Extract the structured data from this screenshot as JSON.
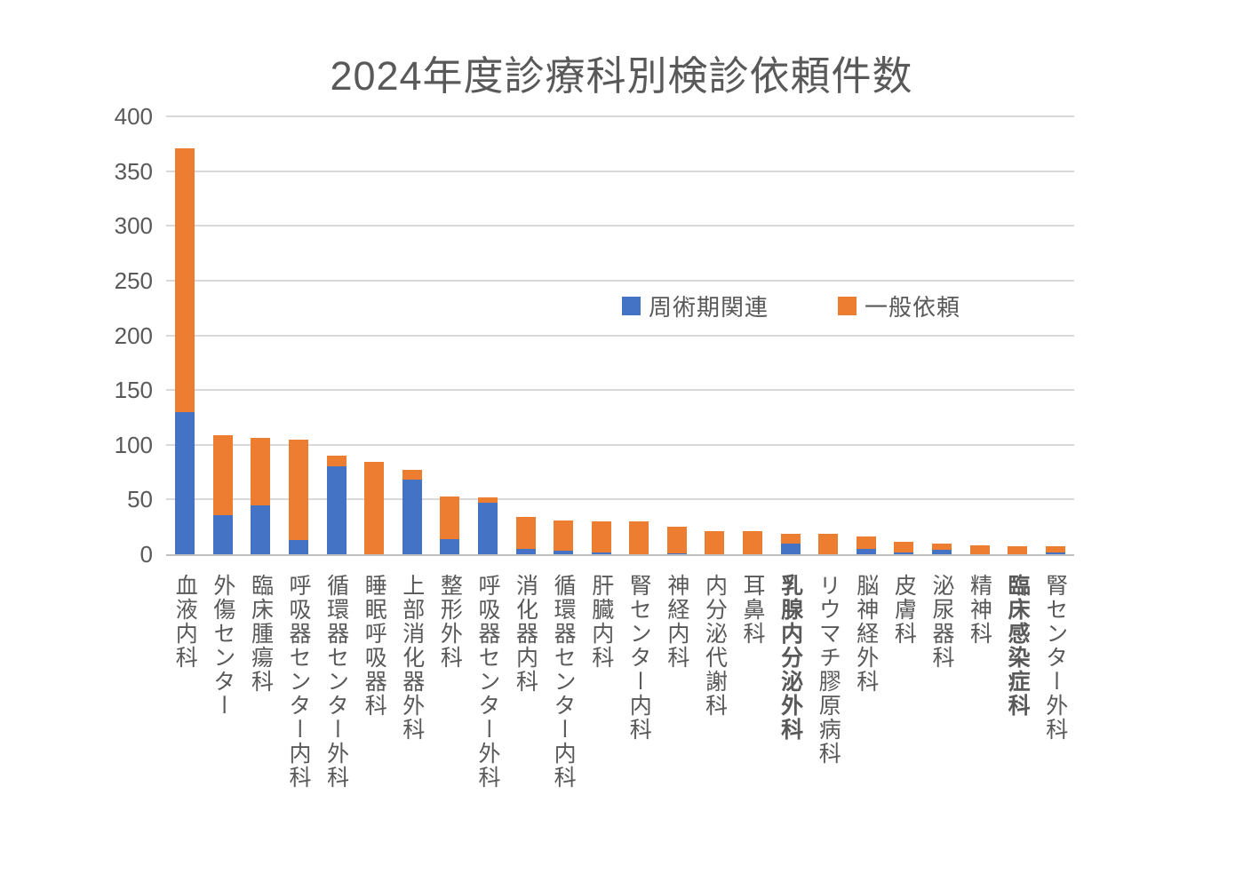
{
  "page": {
    "background": "#FFFFFF"
  },
  "chart_data": {
    "type": "bar",
    "stacked": true,
    "title": "2024年度診療科別検診依頼件数",
    "title_color": "#595959",
    "categories": [
      "血液内科",
      "外傷センター",
      "臨床腫瘍科",
      "呼吸器センター内科",
      "循環器センター外科",
      "睡眠呼吸器科",
      "上部消化器外科",
      "整形外科",
      "呼吸器センター外科",
      "消化器内科",
      "循環器センター内科",
      "肝臓内科",
      "腎センター内科",
      "神経内科",
      "内分泌代謝科",
      "耳鼻科",
      "乳腺内分泌外科",
      "リウマチ膠原病科",
      "脳神経外科",
      "皮膚科",
      "泌尿器科",
      "精神科",
      "臨床感染症科",
      "腎センター外科"
    ],
    "bold_categories": [
      "乳腺内分泌外科",
      "臨床感染症科"
    ],
    "series": [
      {
        "name": "周術期関連",
        "color": "#4472C4",
        "values": [
          130,
          36,
          45,
          13,
          80,
          0,
          68,
          14,
          47,
          5,
          3,
          2,
          0,
          1,
          0,
          0,
          10,
          0,
          5,
          2,
          4,
          0,
          0,
          2
        ]
      },
      {
        "name": "一般依頼",
        "color": "#ED7D31",
        "values": [
          241,
          73,
          61,
          92,
          10,
          84,
          9,
          39,
          5,
          29,
          28,
          28,
          30,
          24,
          21,
          21,
          9,
          19,
          11,
          9,
          6,
          8,
          7,
          5
        ]
      }
    ],
    "totals": [
      371,
      109,
      106,
      105,
      90,
      84,
      77,
      53,
      52,
      34,
      31,
      30,
      30,
      25,
      21,
      21,
      19,
      19,
      16,
      11,
      10,
      8,
      7,
      7
    ],
    "xlabel": "",
    "ylabel": "",
    "ylim": [
      0,
      400
    ],
    "yticks": [
      0,
      50,
      100,
      150,
      200,
      250,
      300,
      350,
      400
    ],
    "grid": true,
    "gridline_color": "#D9D9D9",
    "axis_line_color": "#BFBFBF",
    "axis_text_color": "#595959",
    "legend": {
      "position": "inside-upper-middle",
      "entries": [
        "周術期関連",
        "一般依頼"
      ]
    }
  }
}
